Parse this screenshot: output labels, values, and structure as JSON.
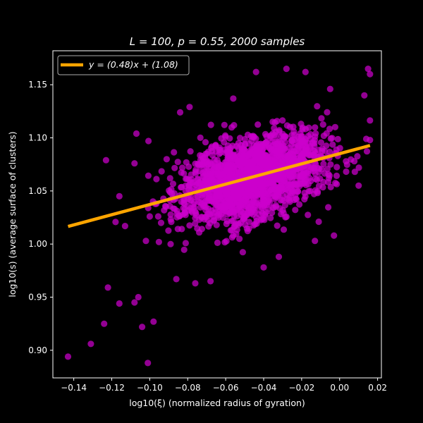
{
  "chart_data": {
    "type": "scatter",
    "title": "L = 100,  p = 0.55,  2000 samples",
    "xlabel": "log10(ξ) (normalized radius of gyration)",
    "ylabel": "log10(s) (average surface of clusters)",
    "xlim": [
      -0.151,
      0.022
    ],
    "ylim": [
      0.874,
      1.182
    ],
    "xticks": [
      -0.14,
      -0.12,
      -0.1,
      -0.08,
      -0.06,
      -0.04,
      -0.02,
      0.0,
      0.02
    ],
    "xtick_labels": [
      "−0.14",
      "−0.12",
      "−0.10",
      "−0.08",
      "−0.06",
      "−0.04",
      "−0.02",
      "0.00",
      "0.02"
    ],
    "yticks": [
      0.9,
      0.95,
      1.0,
      1.05,
      1.1,
      1.15
    ],
    "ytick_labels": [
      "0.90",
      "0.95",
      "1.00",
      "1.05",
      "1.10",
      "1.15"
    ],
    "grid": false,
    "legend_position": "top-left",
    "series": [
      {
        "name": "y = (0.48)x + (1.08)",
        "type": "line",
        "color": "#ffa500",
        "x": [
          -0.143,
          0.016
        ],
        "y": [
          1.0166,
          1.0928
        ]
      },
      {
        "type": "scatter",
        "color": "#cc00cc",
        "count": 2000,
        "outliers": [
          [
            -0.143,
            0.894
          ],
          [
            -0.131,
            0.906
          ],
          [
            -0.124,
            0.925
          ],
          [
            -0.122,
            0.959
          ],
          [
            -0.116,
            0.944
          ],
          [
            -0.108,
            0.945
          ],
          [
            -0.106,
            0.95
          ],
          [
            -0.104,
            0.922
          ],
          [
            -0.101,
            0.888
          ],
          [
            -0.098,
            0.927
          ],
          [
            -0.123,
            1.079
          ],
          [
            -0.116,
            1.045
          ],
          [
            -0.113,
            1.017
          ],
          [
            -0.108,
            1.076
          ],
          [
            -0.107,
            1.104
          ],
          [
            -0.102,
            1.003
          ],
          [
            -0.1,
            1.026
          ],
          [
            -0.086,
            0.967
          ],
          [
            -0.076,
            0.963
          ],
          [
            -0.068,
            0.965
          ],
          [
            -0.056,
            1.137
          ],
          [
            -0.044,
            1.162
          ],
          [
            -0.04,
            0.978
          ],
          [
            -0.032,
            0.988
          ],
          [
            -0.028,
            1.165
          ],
          [
            -0.018,
            1.162
          ],
          [
            -0.005,
            1.146
          ],
          [
            -0.011,
            1.021
          ],
          [
            0.01,
            1.055
          ],
          [
            0.013,
            1.14
          ],
          [
            0.015,
            1.165
          ],
          [
            0.016,
            1.16
          ],
          [
            0.014,
            1.099
          ],
          [
            0.008,
            1.068
          ],
          [
            -0.084,
            1.124
          ],
          [
            -0.079,
            1.129
          ],
          [
            -0.013,
            1.003
          ],
          [
            -0.003,
            1.008
          ],
          [
            -0.094,
            1.02
          ],
          [
            -0.089,
            1.0
          ]
        ]
      }
    ]
  }
}
